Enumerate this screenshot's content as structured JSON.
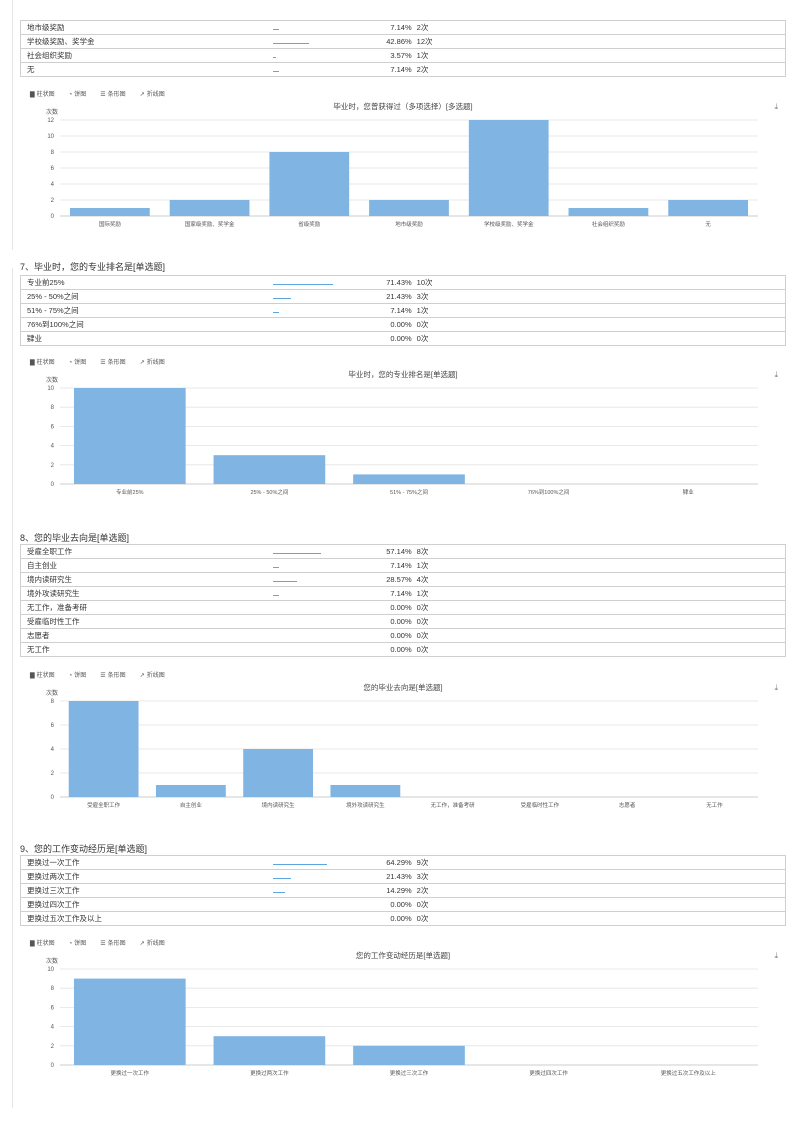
{
  "q6_partial": {
    "rows": [
      {
        "label": "地市级奖励",
        "percent": "7.14%",
        "count": "2次",
        "value": 7.14
      },
      {
        "label": "学校级奖励、奖学金",
        "percent": "42.86%",
        "count": "12次",
        "value": 42.86
      },
      {
        "label": "社会组织奖励",
        "percent": "3.57%",
        "count": "1次",
        "value": 3.57
      },
      {
        "label": "无",
        "percent": "7.14%",
        "count": "2次",
        "value": 7.14
      }
    ],
    "toolbar": {
      "bar": "柱状图",
      "pie": "饼图",
      "hbar": "条形图",
      "line": "折线图"
    },
    "chart_data": {
      "type": "bar",
      "title": "毕业时，您曾获得过（多项选择）[多选题]",
      "ylabel": "次数",
      "categories": [
        "国际奖励",
        "国家级奖励、奖学金",
        "省级奖励",
        "地市级奖励",
        "学校级奖励、奖学金",
        "社会组织奖励",
        "无"
      ],
      "values": [
        1,
        2,
        8,
        2,
        12,
        1,
        2
      ],
      "yticks": [
        "0",
        "2",
        "4",
        "6",
        "8",
        "10",
        "12"
      ],
      "ylim": [
        0,
        12
      ],
      "bar_color": "#80b4e2"
    }
  },
  "q7": {
    "title": "7、毕业时，您的专业排名是[单选题]",
    "rows": [
      {
        "label": "专业前25%",
        "percent": "71.43%",
        "count": "10次",
        "value": 71.43
      },
      {
        "label": "25% - 50%之间",
        "percent": "21.43%",
        "count": "3次",
        "value": 21.43
      },
      {
        "label": "51% - 75%之间",
        "percent": "7.14%",
        "count": "1次",
        "value": 7.14
      },
      {
        "label": "76%到100%之间",
        "percent": "0.00%",
        "count": "0次",
        "value": 0
      },
      {
        "label": "肄业",
        "percent": "0.00%",
        "count": "0次",
        "value": 0
      }
    ],
    "toolbar": {
      "bar": "柱状图",
      "pie": "饼图",
      "hbar": "条形图",
      "line": "折线图"
    },
    "chart_data": {
      "type": "bar",
      "title": "毕业时，您的专业排名是[单选题]",
      "ylabel": "次数",
      "categories": [
        "专业前25%",
        "25% - 50%之间",
        "51% - 75%之间",
        "76%到100%之间",
        "肄业"
      ],
      "values": [
        10,
        3,
        1,
        0,
        0
      ],
      "yticks": [
        "0",
        "2",
        "4",
        "6",
        "8",
        "10"
      ],
      "ylim": [
        0,
        10
      ],
      "bar_color": "#80b4e2"
    }
  },
  "q8": {
    "title": "8、您的毕业去向是[单选题]",
    "rows": [
      {
        "label": "受雇全职工作",
        "percent": "57.14%",
        "count": "8次",
        "value": 57.14
      },
      {
        "label": "自主创业",
        "percent": "7.14%",
        "count": "1次",
        "value": 7.14
      },
      {
        "label": "境内读研究生",
        "percent": "28.57%",
        "count": "4次",
        "value": 28.57
      },
      {
        "label": "境外攻读研究生",
        "percent": "7.14%",
        "count": "1次",
        "value": 7.14
      },
      {
        "label": "无工作，准备考研",
        "percent": "0.00%",
        "count": "0次",
        "value": 0
      },
      {
        "label": "受雇临时性工作",
        "percent": "0.00%",
        "count": "0次",
        "value": 0
      },
      {
        "label": "志愿者",
        "percent": "0.00%",
        "count": "0次",
        "value": 0
      },
      {
        "label": "无工作",
        "percent": "0.00%",
        "count": "0次",
        "value": 0
      }
    ],
    "toolbar": {
      "bar": "柱状图",
      "pie": "饼图",
      "hbar": "条形图",
      "line": "折线图"
    },
    "chart_data": {
      "type": "bar",
      "title": "您的毕业去向是[单选题]",
      "ylabel": "次数",
      "categories": [
        "受雇全职工作",
        "自主创业",
        "境内读研究生",
        "境外攻读研究生",
        "无工作，准备考研",
        "受雇临时性工作",
        "志愿者",
        "无工作"
      ],
      "values": [
        8,
        1,
        4,
        1,
        0,
        0,
        0,
        0
      ],
      "yticks": [
        "0",
        "2",
        "4",
        "6",
        "8"
      ],
      "ylim": [
        0,
        8
      ],
      "bar_color": "#80b4e2"
    }
  },
  "q9": {
    "title": "9、您的工作变动经历是[单选题]",
    "rows": [
      {
        "label": "更换过一次工作",
        "percent": "64.29%",
        "count": "9次",
        "value": 64.29
      },
      {
        "label": "更换过两次工作",
        "percent": "21.43%",
        "count": "3次",
        "value": 21.43
      },
      {
        "label": "更换过三次工作",
        "percent": "14.29%",
        "count": "2次",
        "value": 14.29
      },
      {
        "label": "更换过四次工作",
        "percent": "0.00%",
        "count": "0次",
        "value": 0
      },
      {
        "label": "更换过五次工作及以上",
        "percent": "0.00%",
        "count": "0次",
        "value": 0
      }
    ],
    "toolbar": {
      "bar": "柱状图",
      "pie": "饼图",
      "hbar": "条形图",
      "line": "折线图"
    },
    "chart_data": {
      "type": "bar",
      "title": "您的工作变动经历是[单选题]",
      "ylabel": "次数",
      "categories": [
        "更换过一次工作",
        "更换过两次工作",
        "更换过三次工作",
        "更换过四次工作",
        "更换过五次工作及以上"
      ],
      "values": [
        9,
        3,
        2,
        0,
        0
      ],
      "yticks": [
        "0",
        "2",
        "4",
        "6",
        "8",
        "10"
      ],
      "ylim": [
        0,
        10
      ],
      "bar_color": "#80b4e2"
    }
  }
}
